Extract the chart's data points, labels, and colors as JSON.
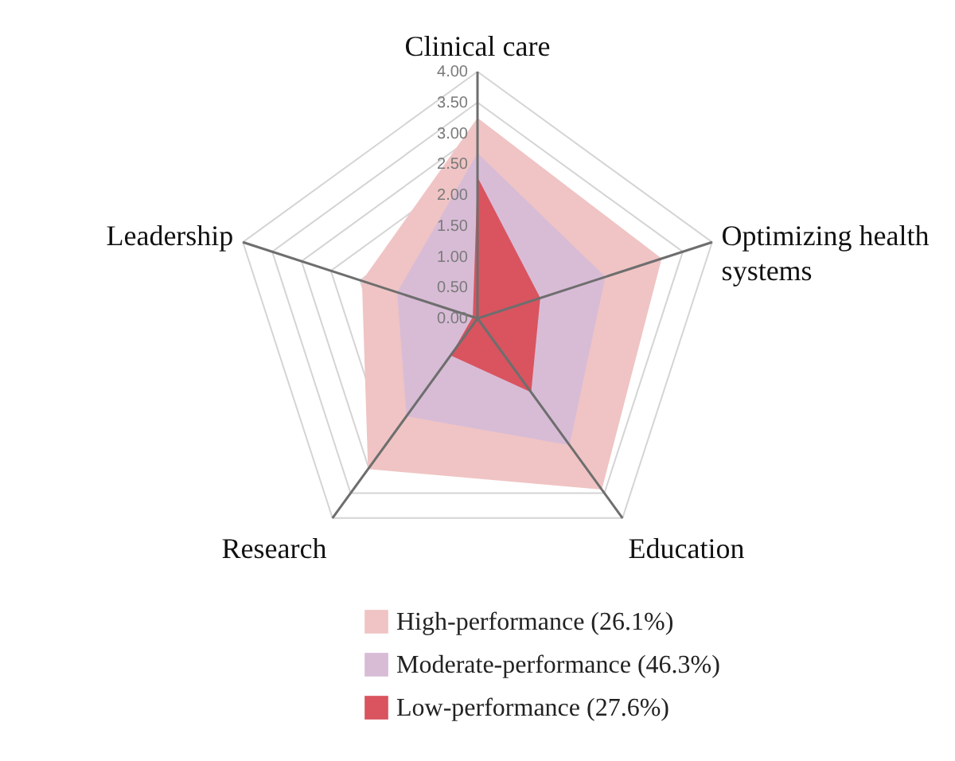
{
  "chart_data": {
    "type": "radar",
    "categories": [
      "Clinical care",
      "Optimizing health systems",
      "Education",
      "Research",
      "Leadership"
    ],
    "ylim": [
      0,
      4
    ],
    "yticks": [
      {
        "value": 0,
        "label": "0.00"
      },
      {
        "value": 0.5,
        "label": "0.50"
      },
      {
        "value": 1,
        "label": "1.00"
      },
      {
        "value": 1.5,
        "label": "1.50"
      },
      {
        "value": 2,
        "label": "2.00"
      },
      {
        "value": 2.5,
        "label": "2.50"
      },
      {
        "value": 3,
        "label": "3.00"
      },
      {
        "value": 3.5,
        "label": "3.50"
      },
      {
        "value": 4,
        "label": "4.00"
      }
    ],
    "grid": true,
    "legend": "bottom",
    "series": [
      {
        "name": "High-performance (26.1%)",
        "color": "#f0c4c4",
        "values": [
          3.25,
          3.14,
          3.43,
          3.02,
          1.97
        ]
      },
      {
        "name": "Moderate-performance (46.3%)",
        "color": "#d8bcd6",
        "values": [
          2.68,
          2.18,
          2.54,
          1.96,
          1.37
        ]
      },
      {
        "name": "Low-performance (27.6%)",
        "color": "#d9545f",
        "values": [
          2.29,
          1.07,
          1.48,
          0.74,
          0.08
        ]
      }
    ]
  }
}
